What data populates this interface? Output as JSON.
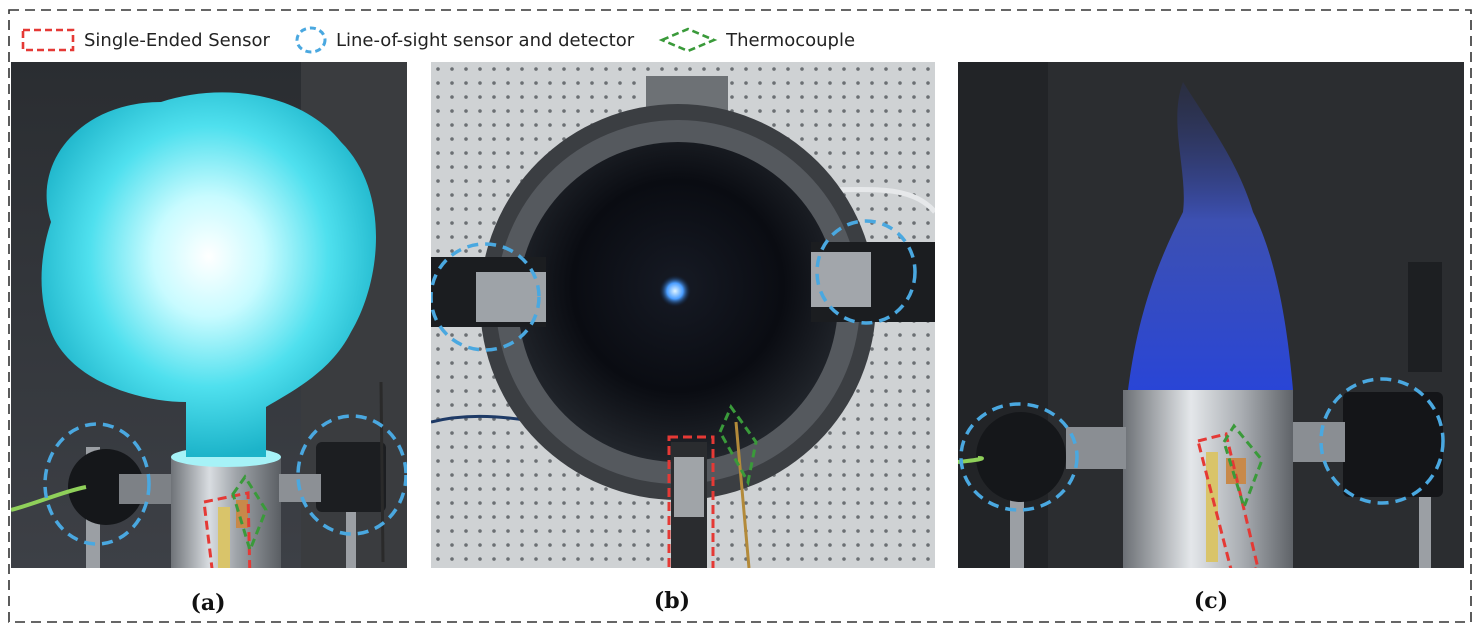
{
  "legend": {
    "single_ended_label": "Single-Ended Sensor",
    "line_of_sight_label": "Line-of-sight sensor and detector",
    "thermocouple_label": "Thermocouple"
  },
  "panels": {
    "a": {
      "caption": "(a)"
    },
    "b": {
      "caption": "(b)"
    },
    "c": {
      "caption": "(c)"
    }
  },
  "colors": {
    "single_ended": "#e53935",
    "line_of_sight": "#4aa8e0",
    "thermocouple": "#3a9a3a",
    "frame": "#333333"
  }
}
